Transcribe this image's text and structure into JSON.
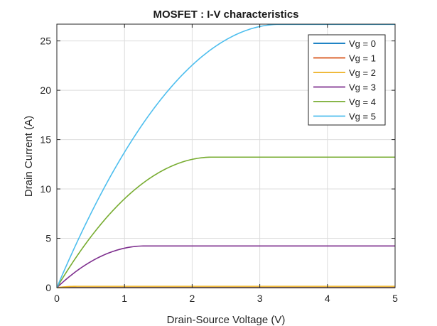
{
  "chart_data": {
    "type": "line",
    "title": "MOSFET : I-V characteristics",
    "xlabel": "Drain-Source Voltage (V)",
    "ylabel": "Drain Current (A)",
    "xlim": [
      0,
      5
    ],
    "ylim": [
      0,
      26.7
    ],
    "xticks": [
      0,
      1,
      2,
      3,
      4,
      5
    ],
    "yticks": [
      0,
      5,
      10,
      15,
      20,
      25
    ],
    "grid": true,
    "legend_position": "top-right",
    "series": [
      {
        "name": "Vg = 0",
        "color": "#0072BD",
        "vt": 1.0,
        "k": 3.0
      },
      {
        "name": "Vg = 1",
        "color": "#D95319",
        "vt": 1.0,
        "k": 3.0
      },
      {
        "name": "Vg = 2",
        "color": "#EDB120",
        "vt": 1.7,
        "k": 3.0
      },
      {
        "name": "Vg = 3",
        "color": "#7E2F8E",
        "vt": 1.7,
        "k": 5.0
      },
      {
        "name": "Vg = 4",
        "color": "#77AC30",
        "vt": 1.7,
        "k": 5.0
      },
      {
        "name": "Vg = 5",
        "color": "#4DBEEE",
        "vt": 1.7,
        "k": 4.9
      }
    ]
  }
}
